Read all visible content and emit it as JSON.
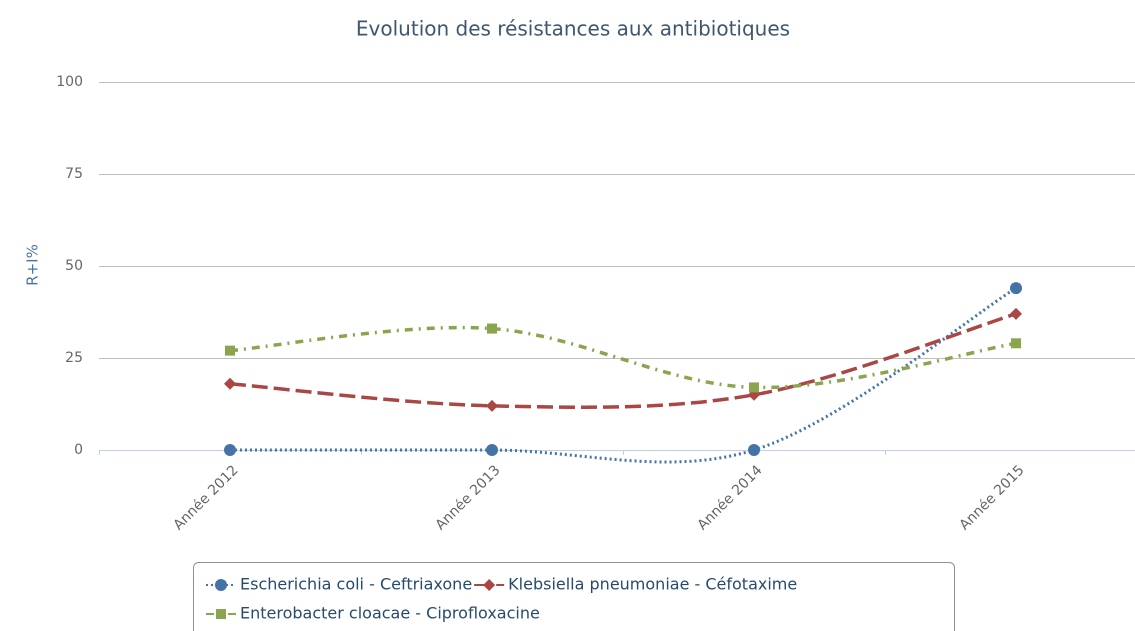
{
  "chart_data": {
    "type": "spline",
    "title": "Evolution des résistances aux antibiotiques",
    "y_axis_label": "R+I%",
    "categories": [
      "Année 2012",
      "Année 2013",
      "Année 2014",
      "Année 2015"
    ],
    "series": [
      {
        "name": "Escherichia coli - Ceftriaxone",
        "color": "#4572a7",
        "dash": "dot",
        "marker": "circle",
        "values": [
          0,
          0,
          0,
          44
        ]
      },
      {
        "name": "Klebsiella pneumoniae - Céfotaxime",
        "color": "#aa4643",
        "dash": "longdash",
        "marker": "diamond",
        "values": [
          18,
          12,
          15,
          37
        ]
      },
      {
        "name": "Enterobacter cloacae - Ciprofloxacine",
        "color": "#89a54e",
        "dash": "dashdot",
        "marker": "square",
        "values": [
          27,
          33,
          17,
          29
        ]
      }
    ],
    "ylim": [
      0,
      100
    ],
    "yticks": [
      0,
      25,
      50,
      75,
      100
    ],
    "grid": true,
    "legend": "bottom"
  }
}
